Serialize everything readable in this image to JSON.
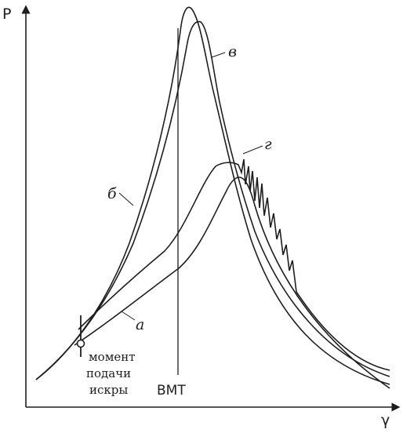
{
  "axes": {
    "y_label": "P",
    "x_label": "γ"
  },
  "markers": {
    "tdc_label": "ВМТ"
  },
  "ignition": {
    "line1": "момент",
    "line2": "подачи",
    "line3": "искры"
  },
  "curves": [
    {
      "id": "a",
      "label": "а"
    },
    {
      "id": "b",
      "label": "б"
    },
    {
      "id": "v",
      "label": "в"
    },
    {
      "id": "g",
      "label": "г"
    }
  ],
  "colors": {
    "ink": "#1e1e1e",
    "background": "#ffffff"
  }
}
